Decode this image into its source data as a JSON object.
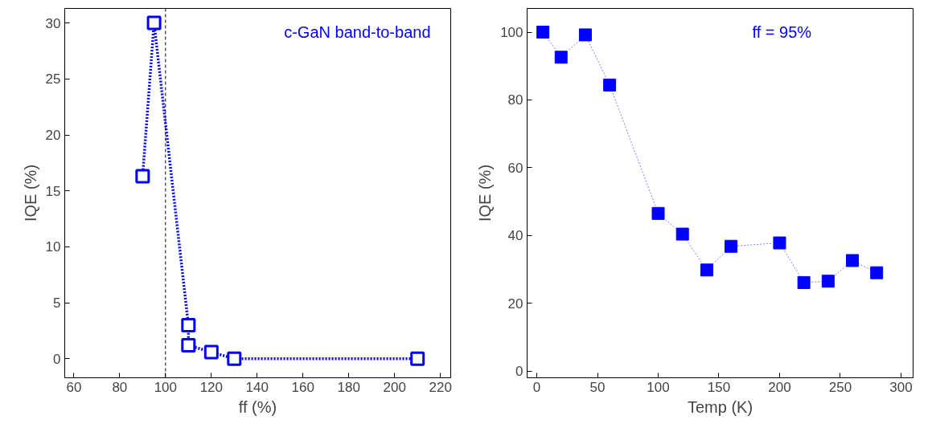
{
  "chart_data": [
    {
      "type": "line",
      "xlabel": "ff (%)",
      "ylabel": "IQE (%)",
      "annotations": [
        "c-GaN band-to-band"
      ],
      "marker": "square",
      "line_style": "dotted",
      "grid": false,
      "x": [
        90,
        95,
        110,
        110,
        120,
        130,
        210
      ],
      "series": [
        {
          "color": "#0000ff",
          "values": [
            16.3,
            30,
            3.0,
            1.2,
            0.6,
            0,
            0
          ]
        }
      ],
      "xlim": [
        56,
        224.5
      ],
      "xticks": [
        60,
        80,
        100,
        120,
        140,
        160,
        180,
        200,
        220
      ],
      "ylim": [
        -1.7,
        31.3
      ],
      "yticks": [
        0,
        5,
        10,
        15,
        20,
        25,
        30
      ],
      "ref_lines": [
        {
          "axis": "x",
          "value": 100,
          "color": "#000000",
          "line_style": "dashed"
        }
      ]
    },
    {
      "type": "line",
      "xlabel": "Temp (K)",
      "ylabel": "IQE (%)",
      "annotations": [
        "ff = 95%"
      ],
      "marker": "square",
      "line_style": "dotted",
      "grid": false,
      "x": [
        5,
        20,
        40,
        60,
        100,
        120,
        140,
        160,
        200,
        220,
        240,
        260,
        280
      ],
      "series": [
        {
          "color": "#0000ff",
          "values": [
            100,
            92.6,
            99.2,
            84.4,
            46.5,
            40.4,
            29.8,
            36.8,
            37.8,
            26.1,
            26.5,
            32.6,
            29
          ]
        }
      ],
      "xlim": [
        -8,
        310
      ],
      "xticks": [
        0,
        50,
        100,
        150,
        200,
        250,
        300
      ],
      "ylim": [
        -2,
        107
      ],
      "yticks": [
        0,
        20,
        40,
        60,
        80,
        100
      ]
    }
  ]
}
